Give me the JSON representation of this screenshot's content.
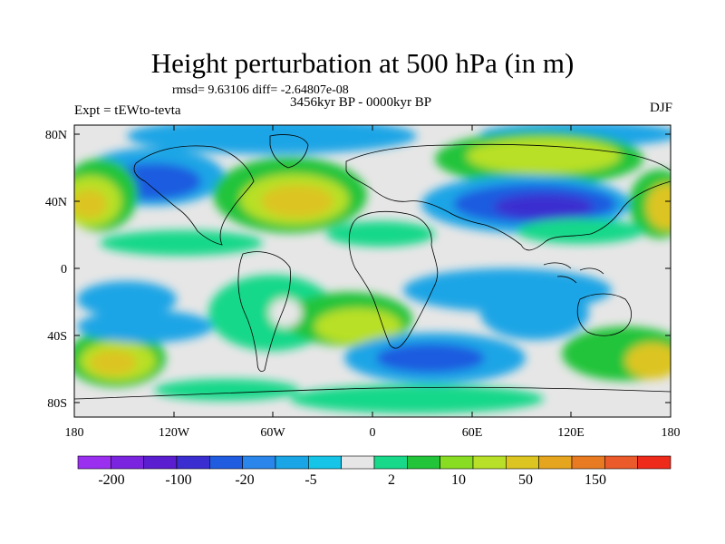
{
  "title": "Height perturbation at 500 hPa (in m)",
  "rmsd_line": "rmsd= 9.63106 diff= -2.64807e-08",
  "experiment_label": "Expt = tEWto-tevta",
  "period_label": "3456kyr BP - 0000kyr BP",
  "season_label": "DJF",
  "lat_ticks": [
    "80N",
    "40N",
    "0",
    "40S",
    "80S"
  ],
  "lon_ticks": [
    "180",
    "120W",
    "60W",
    "0",
    "60E",
    "120E",
    "180"
  ],
  "colorbar": {
    "colors": [
      "#9a2ff0",
      "#7a24e0",
      "#5a1dcf",
      "#3a2ed0",
      "#1f5ce0",
      "#2a86ea",
      "#1aa5e6",
      "#16c4e8",
      "#e6e6e6",
      "#18d88a",
      "#22c43a",
      "#88dd22",
      "#b8e028",
      "#dcc520",
      "#e6a51e",
      "#e87a22",
      "#ea5a2a",
      "#ee2a1a"
    ],
    "labels": [
      "-200",
      "-100",
      "-20",
      "-5",
      "2",
      "10",
      "50",
      "150"
    ]
  }
}
